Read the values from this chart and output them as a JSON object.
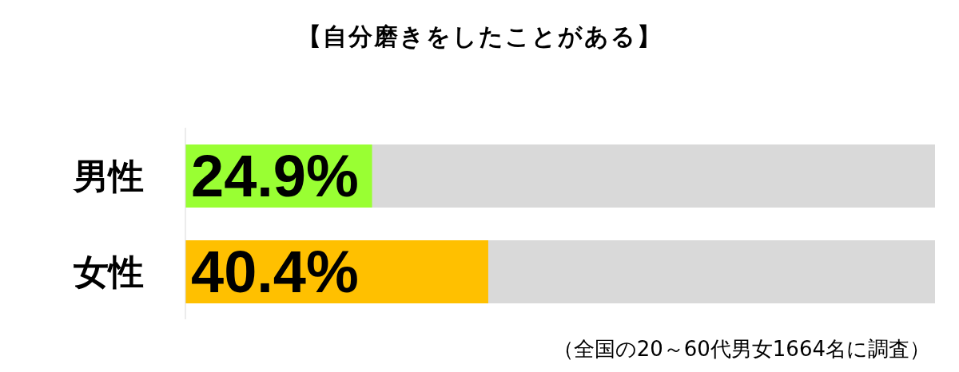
{
  "chart_data": {
    "type": "bar",
    "orientation": "horizontal",
    "title": "【自分磨きをしたことがある】",
    "categories": [
      "男性",
      "女性"
    ],
    "values": [
      24.9,
      40.4
    ],
    "colors": [
      "#99ff33",
      "#ffc000"
    ],
    "value_labels": [
      "24.9%",
      "40.4%"
    ],
    "xlim": [
      0,
      100
    ],
    "tick_labels": "y",
    "annotations": [
      "（全国の20～60代男女1664名に調査）"
    ]
  }
}
